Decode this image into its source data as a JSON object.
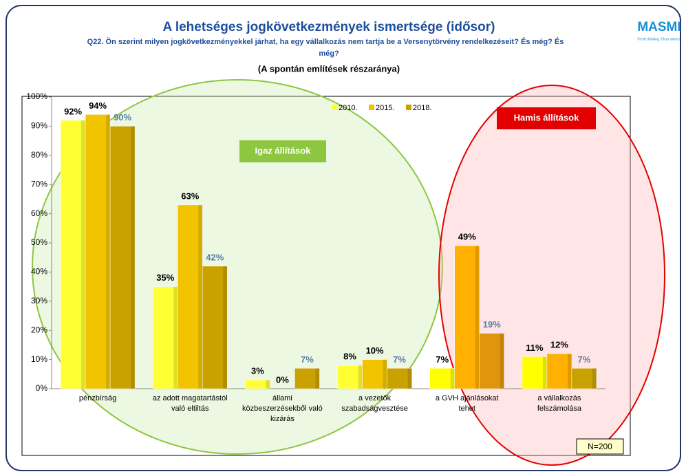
{
  "chart_data": {
    "type": "bar",
    "title": "A lehetséges jogkövetkezmények ismertsége (idősor)",
    "subtitle": [
      "Q22. Ön szerint milyen jogkövetkezményekkel járhat, ha egy vállalkozás nem tartja be a Versenytörvény rendelkezéseit? És még? És",
      "még?"
    ],
    "subtitle2": "(A spontán említések részaránya)",
    "categories": [
      "pénzbírság",
      "az adott magatartástól\nvaló eltiltás",
      "állami\nközbeszerzésekből való\nkizárás",
      "a vezetők\nszabadságvesztése",
      "a GVH ajánlásokat\ntehet",
      "a vállalkozás\nfelszámolása"
    ],
    "series": [
      {
        "name": "2010.",
        "color": "#ffff33",
        "colors": [
          "#ffff33",
          "#ffff33",
          "#ffff33",
          "#ffff33",
          "#ffff00",
          "#ffff00"
        ],
        "values": [
          92,
          35,
          3,
          8,
          7,
          11
        ],
        "value_labels": [
          "92%",
          "35%",
          "3%",
          "8%",
          "7%",
          "11%"
        ],
        "label_color": "#000000"
      },
      {
        "name": "2015.",
        "color": "#f2c400",
        "colors": [
          "#f2c400",
          "#f2c400",
          "#f2c400",
          "#f2c400",
          "#ffb000",
          "#ffb000"
        ],
        "values": [
          94,
          63,
          0,
          10,
          49,
          12
        ],
        "value_labels": [
          "94%",
          "63%",
          "0%",
          "10%",
          "49%",
          "12%"
        ],
        "label_color": "#000000"
      },
      {
        "name": "2018.",
        "color": "#c9a200",
        "colors": [
          "#c9a200",
          "#c9a200",
          "#c9a200",
          "#c9a200",
          "#e0960c",
          "#c9a200"
        ],
        "values": [
          90,
          42,
          7,
          7,
          19,
          7
        ],
        "value_labels": [
          "90%",
          "42%",
          "7%",
          "7%",
          "19%",
          "7%"
        ],
        "label_color": "#5b7fa6"
      }
    ],
    "ylim": [
      0,
      100
    ],
    "yticks": [
      {
        "value": 0,
        "label": "0%"
      },
      {
        "value": 10,
        "label": "10%"
      },
      {
        "value": 20,
        "label": "20%"
      },
      {
        "value": 30,
        "label": "30%"
      },
      {
        "value": 40,
        "label": "40%"
      },
      {
        "value": 50,
        "label": "50%"
      },
      {
        "value": 60,
        "label": "60%"
      },
      {
        "value": 70,
        "label": "70%"
      },
      {
        "value": 80,
        "label": "80%"
      },
      {
        "value": 90,
        "label": "90%"
      },
      {
        "value": 100,
        "label": "100%"
      }
    ],
    "legend": "top",
    "annotations": {
      "true_group": "Igaz állítások",
      "false_group": "Hamis állítások",
      "sample": "N=200"
    }
  },
  "logo": {
    "name": "MASMI",
    "tagline": "Fresh thinking. Clear advice."
  }
}
